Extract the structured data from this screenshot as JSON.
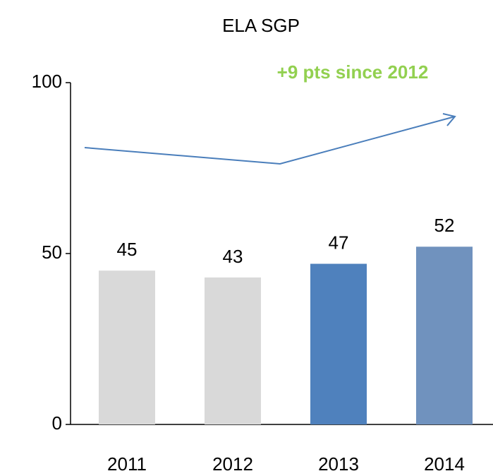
{
  "chart_data": {
    "type": "bar",
    "title": "ELA SGP",
    "annotation": "+9 pts since 2012",
    "categories": [
      "2011",
      "2012",
      "2013",
      "2014"
    ],
    "values": [
      45,
      43,
      47,
      52
    ],
    "colors": [
      "#d9d9d9",
      "#d9d9d9",
      "#4f81bd",
      "#7092be"
    ],
    "ylim": [
      0,
      100
    ],
    "yticks": [
      0,
      50,
      100
    ],
    "grid": false
  }
}
